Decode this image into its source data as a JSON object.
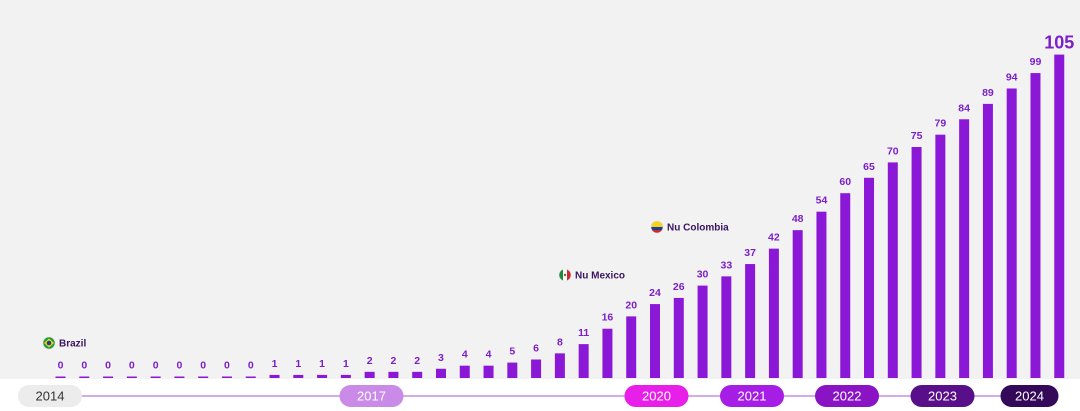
{
  "chart_data": {
    "type": "bar",
    "categories": [
      "",
      "",
      "",
      "",
      "",
      "",
      "",
      "",
      "",
      "",
      "",
      "",
      "",
      "",
      "",
      "",
      "",
      "",
      "",
      "",
      "",
      "",
      "",
      "",
      "",
      "",
      "",
      "",
      "",
      "",
      "",
      "",
      "",
      "",
      "",
      "",
      "",
      "",
      "",
      "",
      "",
      ""
    ],
    "values": [
      0,
      0,
      0,
      0,
      0,
      0,
      0,
      0,
      0,
      1,
      1,
      1,
      1,
      2,
      2,
      2,
      3,
      4,
      4,
      5,
      6,
      8,
      11,
      16,
      20,
      24,
      26,
      30,
      33,
      37,
      42,
      48,
      54,
      60,
      65,
      70,
      75,
      79,
      84,
      89,
      94,
      99,
      105
    ],
    "labels": [
      "0",
      "0",
      "0",
      "0",
      "0",
      "0",
      "0",
      "0",
      "0",
      "1",
      "1",
      "1",
      "1",
      "2",
      "2",
      "2",
      "3",
      "4",
      "4",
      "5",
      "6",
      "8",
      "11",
      "16",
      "20",
      "24",
      "26",
      "30",
      "33",
      "37",
      "42",
      "48",
      "54",
      "60",
      "65",
      "70",
      "75",
      "79",
      "84",
      "89",
      "94",
      "99",
      "105"
    ],
    "bar_color": "#8a18d6",
    "ylim": [
      0,
      110
    ],
    "grid": false,
    "annotations": [
      {
        "bar_index": 0,
        "text": "Brazil",
        "flag": "brazil-flag-icon"
      },
      {
        "bar_index": 22,
        "text": "Nu Mexico",
        "flag": "mexico-flag-icon"
      },
      {
        "bar_index": 26,
        "text": "Nu Colombia",
        "flag": "colombia-flag-icon"
      }
    ],
    "timeline": [
      {
        "label": "2014",
        "bar_index": 0,
        "fill": "#ececec",
        "text_color": "#333333"
      },
      {
        "label": "2017",
        "bar_index": 14,
        "fill": "#c98ae8",
        "text_color": "#ffffff"
      },
      {
        "label": "2020",
        "bar_index": 26,
        "fill": "#e81fe8",
        "text_color": "#ffffff"
      },
      {
        "label": "2021",
        "bar_index": 30,
        "fill": "#a61ee6",
        "text_color": "#ffffff"
      },
      {
        "label": "2022",
        "bar_index": 34,
        "fill": "#8a14c4",
        "text_color": "#ffffff"
      },
      {
        "label": "2023",
        "bar_index": 38,
        "fill": "#5a0f8a",
        "text_color": "#ffffff"
      },
      {
        "label": "2024",
        "bar_index": 42,
        "fill": "#34095a",
        "text_color": "#ffffff"
      }
    ],
    "timeline_line_color": "#b57ad9"
  }
}
